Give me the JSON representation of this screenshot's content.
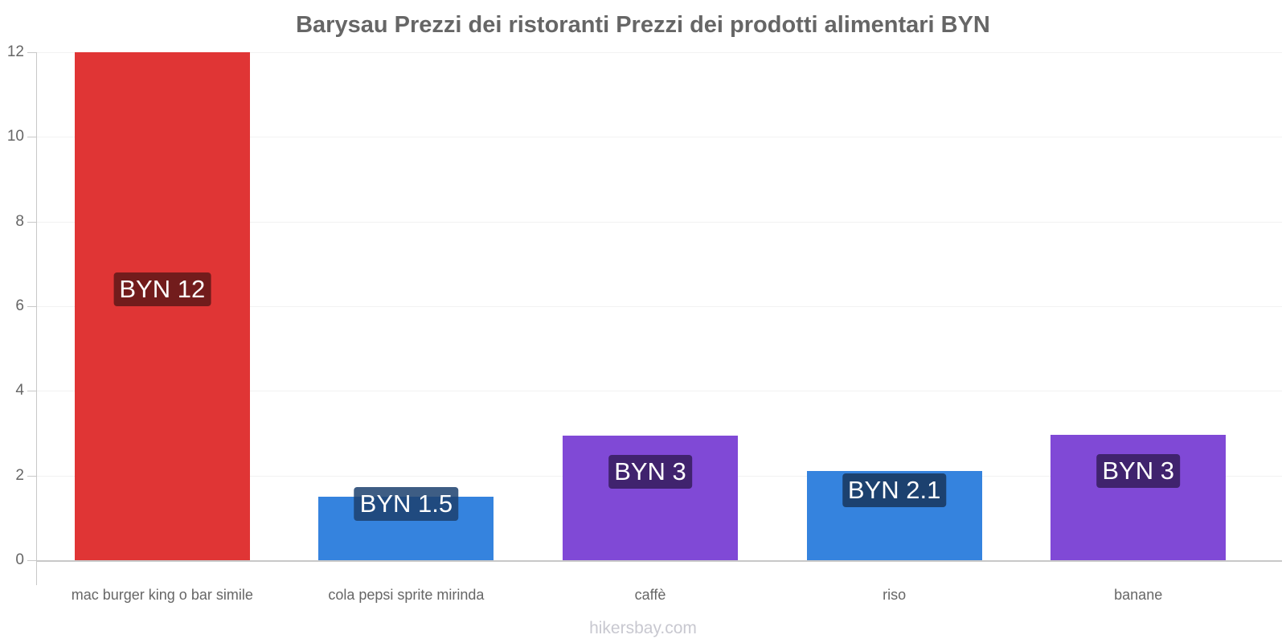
{
  "title": "Barysau Prezzi dei ristoranti Prezzi dei prodotti alimentari BYN",
  "credit": "hikersbay.com",
  "chart_data": {
    "type": "bar",
    "title": "Barysau Prezzi dei ristoranti Prezzi dei prodotti alimentari BYN",
    "xlabel": "",
    "ylabel": "",
    "ylim": [
      0,
      12
    ],
    "yticks": [
      0,
      2,
      4,
      6,
      8,
      10,
      12
    ],
    "grid": true,
    "legend": "none",
    "categories": [
      "mac burger king o bar simile",
      "cola pepsi sprite mirinda",
      "caffè",
      "riso",
      "banane"
    ],
    "values": [
      12,
      1.5,
      2.94,
      2.11,
      2.96
    ],
    "data_labels": [
      "BYN 12",
      "BYN 1.5",
      "BYN 3",
      "BYN 2.1",
      "BYN 3"
    ],
    "bar_colors": [
      "#e03535",
      "#3583de",
      "#8049d6",
      "#3583de",
      "#8049d6"
    ],
    "label_colors": [
      "#721c1c",
      "#1c416f",
      "#40236e",
      "#1c416f",
      "#40236e"
    ]
  }
}
